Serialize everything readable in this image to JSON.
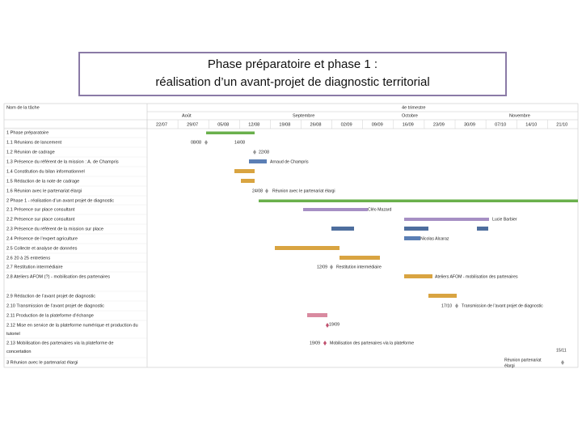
{
  "title": {
    "line1": "Phase préparatoire et phase 1 :",
    "line2": "réalisation d’un avant-projet de diagnostic territorial"
  },
  "gantt": {
    "task_header": "Nom de la tâche",
    "quarter": "4e trimestre",
    "months": [
      "Août",
      "Septembre",
      "Octobre",
      "Novembre"
    ],
    "weeks": [
      "22/07",
      "29/07",
      "05/08",
      "12/08",
      "19/08",
      "26/08",
      "02/09",
      "09/09",
      "16/09",
      "23/09",
      "30/09",
      "07/10",
      "14/10",
      "21/10"
    ],
    "tasks": [
      {
        "label": [
          "1 Phase préparatoire"
        ]
      },
      {
        "label": [
          "1.1 Réunions de lancement"
        ]
      },
      {
        "label": [
          "1.2 Réunion de cadrage"
        ]
      },
      {
        "label": [
          "1.3 Présence du référent de la mission : A. de Champris"
        ]
      },
      {
        "label": [
          "1.4 Constitution du bilan informationnel"
        ]
      },
      {
        "label": [
          "1.5 Rédaction de la note de cadrage"
        ]
      },
      {
        "label": [
          "1.6 Réunion avec le partenariat élargi"
        ]
      },
      {
        "label": [
          "2 Phase 1 - réalisation d’un avant projet de diagnostic"
        ]
      },
      {
        "label": [
          "2.1 Présence sur place consultant"
        ]
      },
      {
        "label": [
          "2.2 Présence sur place consultant"
        ]
      },
      {
        "label": [
          "2.3 Présence du référent de la mission sur place"
        ]
      },
      {
        "label": [
          "2.4 Présence de l’expert agriculture"
        ]
      },
      {
        "label": [
          "2.5 Collecte et analyse de données"
        ]
      },
      {
        "label": [
          "2.6 20 à 25 entretiens"
        ]
      },
      {
        "label": [
          "2.7 Restitution intermédiaire"
        ]
      },
      {
        "label": [
          "2.8 Ateliers AFOM (?) - mobilisation des partenaires"
        ]
      },
      {
        "label": [
          "2.9 Rédaction de l’avant projet de diagnostic"
        ]
      },
      {
        "label": [
          "2.10 Transmission de l’avant projet de diagnostic"
        ]
      },
      {
        "label": [
          "2.11 Production de la plateforme d’échange"
        ]
      },
      {
        "label": [
          "2.12 Mise en service de la plateforme numérique et production du",
          "tutoriel"
        ]
      },
      {
        "label": [
          "2.13 Mobilisation des partenaires via la plateforme de",
          "concertation"
        ]
      },
      {
        "label": [
          "3 Réunion avec le partenariat élargi"
        ]
      }
    ],
    "annotations": [
      "08/08",
      "14/08",
      "22/08",
      "Arnaud de Champris",
      "24/08",
      "Réunion avec le partenariat élargi",
      "Cléo Mazard",
      "Lucie Barbier",
      "Nicolas Alcaraz",
      "12/09",
      "Restitution intermédiaire",
      "Ateliers AFOM - mobilisation des partenaires",
      "17/10",
      "Transmission de l’avant projet de diagnostic",
      "19/09",
      "19/09",
      "Mobilisation des partenaires via la plateforme",
      "15/11",
      "Réunion partenariat",
      "élargi"
    ]
  }
}
